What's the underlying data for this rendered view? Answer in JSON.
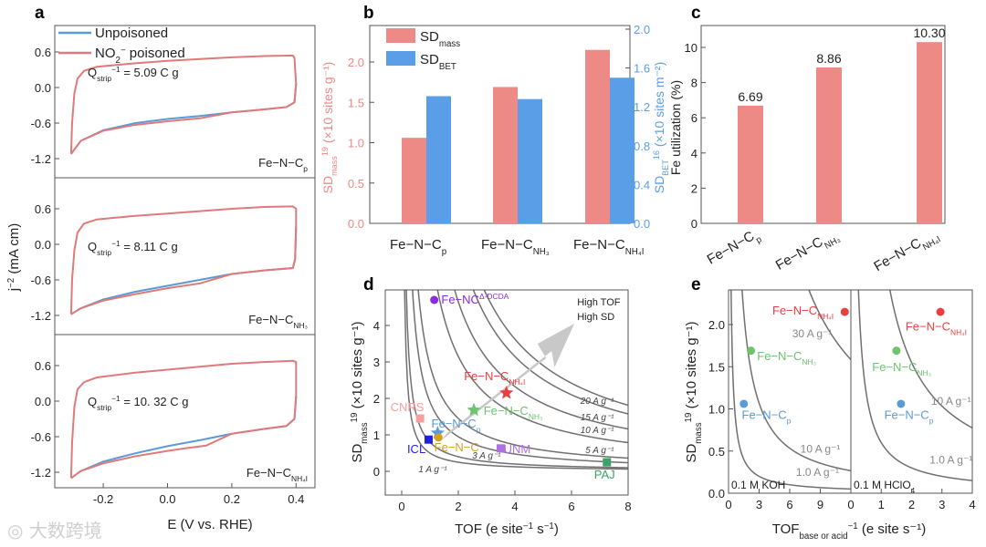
{
  "panel_letters": [
    "a",
    "b",
    "c",
    "d",
    "e"
  ],
  "watermark": "大数跨境",
  "colors": {
    "blue": "#5b9bd5",
    "red": "#e07a7a",
    "barRed": "#ed8a86",
    "barBlue": "#5b9ee8",
    "curve": "#707070",
    "arrow": "#c8c8c8"
  },
  "chart_data": [
    {
      "id": "a",
      "type": "line",
      "xlabel": {
        "base": "E",
        "rest": " (V vs. RHE)"
      },
      "ylabel": {
        "base": "j",
        "rest": " (mA cm",
        "sup": "−2",
        "end": ")"
      },
      "xlim": [
        -0.36,
        0.47
      ],
      "ylim": [
        -1.45,
        0.95
      ],
      "xticks": [
        -0.2,
        0.0,
        0.2,
        0.4
      ],
      "xticklabels": [
        "-0.2",
        "0.0",
        "0.2",
        "0.4"
      ],
      "yticks": [
        0.6,
        0.0,
        -0.6,
        -1.2
      ],
      "yticklabels": [
        "0.6",
        "0.0",
        "-0.6",
        "-1.2"
      ],
      "legend": [
        {
          "name": "Unpoisoned",
          "color": "#5b9bd5"
        },
        {
          "name": "NO",
          "sub": "2",
          "sup": "−",
          "rest": " poisoned",
          "color": "#e07a7a"
        }
      ],
      "subplots": [
        {
          "label": {
            "base": "Fe−N−C",
            "sub": "p"
          },
          "q": {
            "base": "Q",
            "sub": "strip",
            "rest": " = 5.09 C g",
            "sup": "−1"
          },
          "upper": [
            [
              -0.3,
              -1.12
            ],
            [
              -0.297,
              -0.6
            ],
            [
              -0.29,
              -0.1
            ],
            [
              -0.28,
              0.15
            ],
            [
              -0.26,
              0.28
            ],
            [
              -0.22,
              0.35
            ],
            [
              -0.1,
              0.41
            ],
            [
              0.0,
              0.45
            ],
            [
              0.1,
              0.48
            ],
            [
              0.2,
              0.51
            ],
            [
              0.3,
              0.53
            ],
            [
              0.39,
              0.54
            ],
            [
              0.395,
              0.5
            ]
          ],
          "lower_unp": [
            [
              0.4,
              0.06
            ],
            [
              0.395,
              -0.25
            ],
            [
              0.37,
              -0.33
            ],
            [
              0.3,
              -0.37
            ],
            [
              0.2,
              -0.42
            ],
            [
              0.1,
              -0.48
            ],
            [
              0.0,
              -0.53
            ],
            [
              -0.1,
              -0.6
            ],
            [
              -0.2,
              -0.72
            ],
            [
              -0.27,
              -0.9
            ],
            [
              -0.3,
              -1.12
            ]
          ],
          "lower_poi": [
            [
              0.4,
              0.06
            ],
            [
              0.395,
              -0.25
            ],
            [
              0.37,
              -0.33
            ],
            [
              0.3,
              -0.37
            ],
            [
              0.2,
              -0.42
            ],
            [
              0.1,
              -0.52
            ],
            [
              0.0,
              -0.57
            ],
            [
              -0.1,
              -0.63
            ],
            [
              -0.2,
              -0.73
            ],
            [
              -0.27,
              -0.9
            ],
            [
              -0.3,
              -1.12
            ]
          ]
        },
        {
          "label": {
            "base": "Fe−N−C",
            "sub": "NH₃"
          },
          "q": {
            "base": "Q",
            "sub": "strip",
            "rest": " = 8.11 C g",
            "sup": "−1"
          },
          "upper": [
            [
              -0.3,
              -1.18
            ],
            [
              -0.297,
              -0.6
            ],
            [
              -0.29,
              -0.1
            ],
            [
              -0.28,
              0.2
            ],
            [
              -0.26,
              0.35
            ],
            [
              -0.22,
              0.42
            ],
            [
              -0.1,
              0.48
            ],
            [
              0.0,
              0.52
            ],
            [
              0.1,
              0.56
            ],
            [
              0.2,
              0.6
            ],
            [
              0.3,
              0.63
            ],
            [
              0.39,
              0.64
            ],
            [
              0.4,
              0.6
            ]
          ],
          "lower_unp": [
            [
              0.4,
              0.3
            ],
            [
              0.397,
              -0.25
            ],
            [
              0.39,
              -0.4
            ],
            [
              0.3,
              -0.44
            ],
            [
              0.2,
              -0.5
            ],
            [
              0.1,
              -0.6
            ],
            [
              0.0,
              -0.7
            ],
            [
              -0.1,
              -0.8
            ],
            [
              -0.2,
              -0.93
            ],
            [
              -0.27,
              -1.08
            ],
            [
              -0.3,
              -1.18
            ]
          ],
          "lower_poi": [
            [
              0.4,
              0.3
            ],
            [
              0.397,
              -0.25
            ],
            [
              0.39,
              -0.4
            ],
            [
              0.3,
              -0.44
            ],
            [
              0.2,
              -0.5
            ],
            [
              0.1,
              -0.66
            ],
            [
              0.0,
              -0.74
            ],
            [
              -0.1,
              -0.84
            ],
            [
              -0.2,
              -0.95
            ],
            [
              -0.27,
              -1.08
            ],
            [
              -0.3,
              -1.18
            ]
          ]
        },
        {
          "label": {
            "base": "Fe−N−C",
            "sub": "NH₄I"
          },
          "q": {
            "base": "Q",
            "sub": "strip",
            "rest": " = 10. 32 C g",
            "sup": "−1"
          },
          "upper": [
            [
              -0.3,
              -1.3
            ],
            [
              -0.297,
              -0.7
            ],
            [
              -0.29,
              -0.1
            ],
            [
              -0.28,
              0.2
            ],
            [
              -0.26,
              0.32
            ],
            [
              -0.22,
              0.4
            ],
            [
              -0.1,
              0.48
            ],
            [
              0.0,
              0.53
            ],
            [
              0.1,
              0.58
            ],
            [
              0.2,
              0.63
            ],
            [
              0.3,
              0.66
            ],
            [
              0.39,
              0.68
            ],
            [
              0.4,
              0.66
            ]
          ],
          "lower_unp": [
            [
              0.4,
              0.08
            ],
            [
              0.395,
              -0.3
            ],
            [
              0.37,
              -0.42
            ],
            [
              0.3,
              -0.47
            ],
            [
              0.2,
              -0.55
            ],
            [
              0.1,
              -0.66
            ],
            [
              0.0,
              -0.76
            ],
            [
              -0.1,
              -0.88
            ],
            [
              -0.2,
              -1.02
            ],
            [
              -0.27,
              -1.18
            ],
            [
              -0.3,
              -1.3
            ]
          ],
          "lower_poi": [
            [
              0.4,
              0.08
            ],
            [
              0.395,
              -0.3
            ],
            [
              0.37,
              -0.42
            ],
            [
              0.3,
              -0.47
            ],
            [
              0.2,
              -0.55
            ],
            [
              0.12,
              -0.75
            ],
            [
              0.05,
              -0.8
            ],
            [
              0.0,
              -0.84
            ],
            [
              -0.1,
              -0.93
            ],
            [
              -0.2,
              -1.05
            ],
            [
              -0.27,
              -1.18
            ],
            [
              -0.3,
              -1.3
            ]
          ]
        }
      ]
    },
    {
      "id": "b",
      "type": "bar",
      "categories": [
        {
          "base": "Fe−N−C",
          "sub": "p"
        },
        {
          "base": "Fe−N−C",
          "sub": "NH₃"
        },
        {
          "base": "Fe−N−C",
          "sub": "NH₄I"
        }
      ],
      "series": [
        {
          "name": {
            "base": "SD",
            "sub": "mass"
          },
          "axis": "left",
          "values": [
            1.06,
            1.69,
            2.15
          ]
        },
        {
          "name": {
            "base": "SD",
            "sub": "BET"
          },
          "axis": "right",
          "values": [
            1.31,
            1.28,
            1.5
          ]
        }
      ],
      "ylabel": {
        "base": "SD",
        "sub": "mass",
        "rest": " (×10",
        "sup": "19",
        "end": " sites g⁻¹)"
      },
      "y2label": {
        "base": "SD",
        "sub": "BET",
        "rest": " (×10",
        "sup": "16",
        "end": " sites m⁻²)"
      },
      "ylim": [
        0,
        2.45
      ],
      "y2lim": [
        0,
        2.04
      ],
      "yticks": [
        "0.0",
        "0.5",
        "1.0",
        "1.5",
        "2.0"
      ],
      "y2ticks": [
        "0.0",
        "0.4",
        "0.8",
        "1.2",
        "1.6",
        "2.0"
      ],
      "legend_position": "top-left"
    },
    {
      "id": "c",
      "type": "bar",
      "categories": [
        {
          "base": "Fe−N−C",
          "sub": "p"
        },
        {
          "base": "Fe−N−C",
          "sub": "NH₃"
        },
        {
          "base": "Fe−N−C",
          "sub": "NH₄I"
        }
      ],
      "values": [
        6.69,
        8.86,
        10.3
      ],
      "data_labels": [
        "6.69",
        "8.86",
        "10.30"
      ],
      "ylabel": "Fe utilization (%)",
      "ylim": [
        0,
        11.2
      ],
      "yticks": [
        "0",
        "2",
        "4",
        "6",
        "8",
        "10"
      ]
    },
    {
      "id": "d",
      "type": "scatter",
      "xlabel": {
        "base": "TOF (e site",
        "sup": "−1",
        "rest": " s",
        "sup2": "−1",
        "end": ")"
      },
      "ylabel": {
        "base": "SD",
        "sub": "mass",
        "rest": " (×10",
        "sup": "19",
        "end": " sites g⁻¹)"
      },
      "xlim": [
        -0.6,
        8
      ],
      "ylim": [
        -0.65,
        5
      ],
      "xticks": [
        "0",
        "2",
        "4",
        "6",
        "8"
      ],
      "yticks": [
        "0",
        "1",
        "2",
        "3",
        "4"
      ],
      "iso_curves": [
        {
          "k": 0.8,
          "label": "1 A g⁻¹",
          "lx": 1.6,
          "ly": -0.02
        },
        {
          "k": 1.9,
          "label": "3 A g⁻¹",
          "lx": 3.5,
          "ly": 0.35
        },
        {
          "k": 2.9,
          "label": "5 A g⁻¹",
          "lx": 7.5,
          "ly": 0.5
        },
        {
          "k": 6.3,
          "label": "10 A g⁻¹",
          "lx": 7.5,
          "ly": 1.05
        },
        {
          "k": 9.3,
          "label": "15 A g⁻¹",
          "lx": 7.5,
          "ly": 1.4
        },
        {
          "k": 12.6,
          "label": "20 A g⁻¹",
          "lx": 7.5,
          "ly": 1.85
        },
        {
          "k": 0.5,
          "label": ""
        },
        {
          "k": 14.5,
          "label": ""
        }
      ],
      "arrow_text": [
        "High TOF",
        "High SD"
      ],
      "points": [
        {
          "name": {
            "base": "Fe−NC",
            "sup": "Δ-DCDA"
          },
          "x": 1.15,
          "y": 4.7,
          "marker": "circle",
          "color": "#8a2be2",
          "lx": 1.4,
          "ly": 4.6
        },
        {
          "name": {
            "base": "Fe−N−C",
            "sub": "NH₄I"
          },
          "x": 3.7,
          "y": 2.15,
          "marker": "star",
          "color": "#e84040",
          "lx": 2.2,
          "ly": 2.5
        },
        {
          "name": {
            "base": "Fe−N−C",
            "sub": "NH₃"
          },
          "x": 2.55,
          "y": 1.68,
          "marker": "star",
          "color": "#6cc46c",
          "lx": 2.7,
          "ly": 1.55
        },
        {
          "name": {
            "base": "CNRS"
          },
          "x": 0.65,
          "y": 1.45,
          "marker": "square",
          "color": "#f4a0a0",
          "lx": -0.4,
          "ly": 1.65
        },
        {
          "name": {
            "base": "Fe−N−C",
            "sub": "p"
          },
          "x": 1.27,
          "y": 1.05,
          "marker": "star",
          "color": "#5b9bd5",
          "lx": 1.05,
          "ly": 1.2
        },
        {
          "name": {
            "base": "ICL"
          },
          "x": 0.95,
          "y": 0.87,
          "marker": "square",
          "color": "#1f1fdd",
          "lx": 0.45,
          "ly": 0.5
        },
        {
          "name": {
            "base": "Fe−N−C"
          },
          "x": 1.3,
          "y": 0.93,
          "marker": "circle",
          "color": "#d4a020",
          "lx": 1.15,
          "ly": 0.55
        },
        {
          "name": {
            "base": "UNM"
          },
          "x": 3.5,
          "y": 0.63,
          "marker": "square",
          "color": "#b070e0",
          "lx": 3.6,
          "ly": 0.5
        },
        {
          "name": {
            "base": "PAJ"
          },
          "x": 7.25,
          "y": 0.25,
          "marker": "square",
          "color": "#3aa36a",
          "lx": 6.8,
          "ly": -0.2
        }
      ]
    },
    {
      "id": "e",
      "type": "scatter",
      "xlabel": {
        "base": "TOF",
        "sub": "base or acid",
        "rest": " (e site",
        "sup": "−1",
        "end": " s⁻¹)"
      },
      "ylabel": {
        "base": "SD",
        "sub": "mass",
        "rest": " (×10",
        "sup": "19",
        "end": " sites g⁻¹)"
      },
      "ylim": [
        0,
        2.4
      ],
      "yticks": [
        "0.0",
        "0.5",
        "1.0",
        "1.5",
        "2.0"
      ],
      "subplots": [
        {
          "condition": "0.1 M KOH",
          "xlim": [
            0,
            12
          ],
          "xticks": [
            "0",
            "3",
            "6",
            "9"
          ],
          "iso_curves": [
            {
              "k": 0.6,
              "label": "1.0 A g⁻¹",
              "lx": 9.8,
              "ly": 0.15
            },
            {
              "k": 3.2,
              "label": "10 A g⁻¹",
              "lx": 9.0,
              "ly": 0.48
            },
            {
              "k": 19,
              "label": "30 A g⁻¹",
              "lx": 8.2,
              "ly": 1.85
            }
          ],
          "points": [
            {
              "name": {
                "base": "Fe−N−C",
                "sub": "p"
              },
              "x": 1.5,
              "y": 1.06,
              "color": "#5b9bd5",
              "lx": 1.3,
              "ly": 0.88
            },
            {
              "name": {
                "base": "Fe−N−C",
                "sub": "NH₃"
              },
              "x": 2.2,
              "y": 1.69,
              "color": "#6cc46c",
              "lx": 2.8,
              "ly": 1.58
            },
            {
              "name": {
                "base": "Fe−N−C",
                "sub": "NH₄I"
              },
              "x": 11.4,
              "y": 2.15,
              "color": "#e84040",
              "lx": 4.3,
              "ly": 2.12
            }
          ]
        },
        {
          "condition": "0.1 M HClO",
          "condition_sub": "4",
          "xlim": [
            0,
            4
          ],
          "xticks": [
            "0",
            "1",
            "2",
            "3",
            "4"
          ],
          "iso_curves": [
            {
              "k": 0.6,
              "label": "1.0 A g⁻¹",
              "lx": 3.3,
              "ly": 0.35
            },
            {
              "k": 3.1,
              "label": "10 A g⁻¹",
              "lx": 3.3,
              "ly": 1.05
            }
          ],
          "points": [
            {
              "name": {
                "base": "Fe−N−C",
                "sub": "p"
              },
              "x": 1.65,
              "y": 1.06,
              "color": "#5b9bd5",
              "lx": 1.1,
              "ly": 0.88
            },
            {
              "name": {
                "base": "Fe−N−C",
                "sub": "NH₃"
              },
              "x": 1.5,
              "y": 1.69,
              "color": "#6cc46c",
              "lx": 0.7,
              "ly": 1.45
            },
            {
              "name": {
                "base": "Fe−N−C",
                "sub": "NH₄I"
              },
              "x": 2.95,
              "y": 2.15,
              "color": "#e84040",
              "lx": 1.8,
              "ly": 1.93
            }
          ]
        }
      ]
    }
  ]
}
